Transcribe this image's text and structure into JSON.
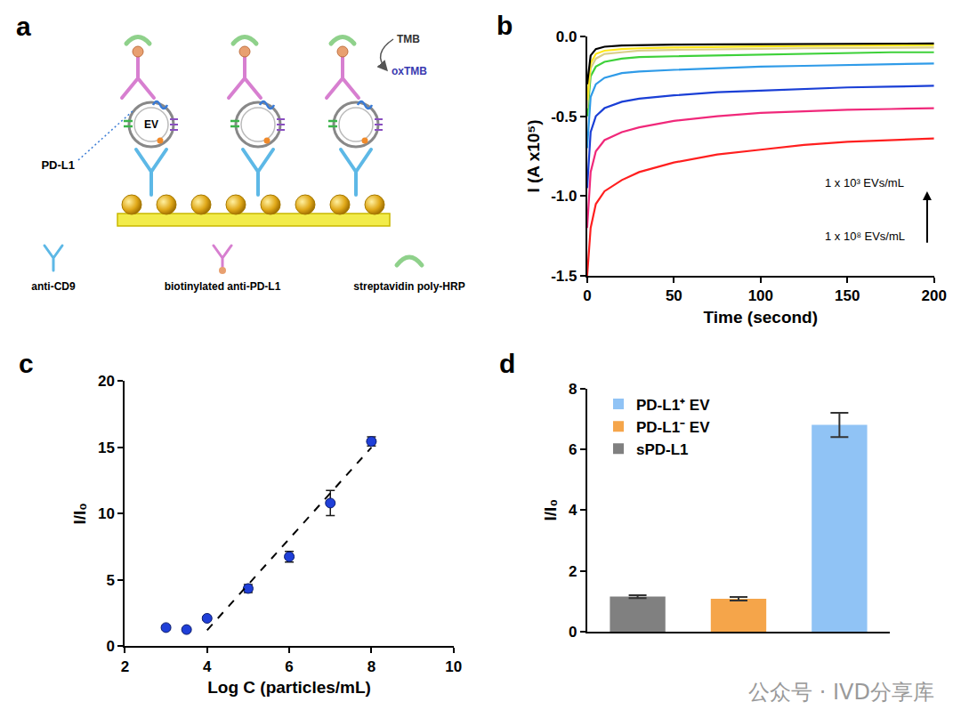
{
  "chart_data": [
    {
      "panel_label": "b",
      "type": "line",
      "x": [
        0,
        2,
        5,
        10,
        20,
        30,
        50,
        75,
        100,
        125,
        150,
        175,
        200
      ],
      "series": [
        {
          "color": "#ff1f1f",
          "values": [
            -1.5,
            -1.2,
            -1.05,
            -0.97,
            -0.9,
            -0.85,
            -0.79,
            -0.74,
            -0.71,
            -0.68,
            -0.66,
            -0.65,
            -0.64
          ]
        },
        {
          "color": "#f0287a",
          "values": [
            -1.2,
            -0.85,
            -0.72,
            -0.65,
            -0.6,
            -0.57,
            -0.53,
            -0.5,
            -0.48,
            -0.47,
            -0.46,
            -0.455,
            -0.45
          ]
        },
        {
          "color": "#1a3fd6",
          "values": [
            -0.95,
            -0.6,
            -0.5,
            -0.45,
            -0.41,
            -0.39,
            -0.37,
            -0.35,
            -0.34,
            -0.33,
            -0.32,
            -0.315,
            -0.31
          ]
        },
        {
          "color": "#2f9be8",
          "values": [
            -0.7,
            -0.38,
            -0.3,
            -0.26,
            -0.23,
            -0.22,
            -0.21,
            -0.2,
            -0.19,
            -0.185,
            -0.18,
            -0.175,
            -0.17
          ]
        },
        {
          "color": "#3ed13a",
          "values": [
            -0.5,
            -0.25,
            -0.19,
            -0.16,
            -0.14,
            -0.13,
            -0.125,
            -0.12,
            -0.115,
            -0.11,
            -0.105,
            -0.1,
            -0.1
          ]
        },
        {
          "color": "#d9cf8a",
          "values": [
            -0.45,
            -0.2,
            -0.14,
            -0.11,
            -0.1,
            -0.09,
            -0.085,
            -0.08,
            -0.078,
            -0.075,
            -0.073,
            -0.071,
            -0.07
          ]
        },
        {
          "color": "#ffe81a",
          "values": [
            -0.4,
            -0.17,
            -0.11,
            -0.09,
            -0.08,
            -0.075,
            -0.07,
            -0.065,
            -0.063,
            -0.06,
            -0.058,
            -0.056,
            -0.055
          ]
        },
        {
          "color": "#000000",
          "values": [
            -0.3,
            -0.12,
            -0.08,
            -0.065,
            -0.058,
            -0.055,
            -0.052,
            -0.05,
            -0.049,
            -0.048,
            -0.047,
            -0.046,
            -0.045
          ]
        }
      ],
      "xlabel": "Time (second)",
      "ylabel": "I (A x10⁵)",
      "xlim": [
        0,
        200
      ],
      "xticks": [
        0,
        50,
        100,
        150,
        200
      ],
      "ylim": [
        -1.5,
        0
      ],
      "yticks": [
        -1.5,
        {
          "value": -1,
          "label": "-1.0"
        },
        -0.5,
        {
          "value": 0,
          "label": "0.0"
        }
      ],
      "annotations": [
        "1 x 10³ EVs/mL",
        "1 x 10⁸ EVs/mL"
      ],
      "grid": false
    },
    {
      "panel_label": "c",
      "type": "scatter",
      "series": [
        {
          "type": "scatter",
          "marker": "circle",
          "color": "#1f3fd8",
          "x": [
            3,
            3.5,
            4,
            5,
            6,
            7,
            8
          ],
          "values": [
            1.4,
            1.25,
            2.1,
            4.35,
            6.75,
            10.8,
            15.45
          ],
          "errors": [
            0.15,
            0.1,
            0.15,
            0.3,
            0.4,
            0.95,
            0.35
          ]
        },
        {
          "type": "line",
          "line_style": "dash",
          "color": "#000000",
          "x": [
            4,
            8
          ],
          "values": [
            1.2,
            15.0
          ]
        }
      ],
      "xlabel": "Log C (particles/mL)",
      "ylabel": "I/I₀",
      "xlim": [
        2,
        10
      ],
      "xticks": [
        2,
        4,
        6,
        8,
        10
      ],
      "ylim": [
        0,
        20
      ],
      "yticks": [
        0,
        5,
        10,
        15,
        20
      ],
      "grid": false
    },
    {
      "panel_label": "d",
      "type": "bar",
      "categories": [
        "sPD-L1",
        "PD-L1⁻ EV",
        "PD-L1⁺ EV"
      ],
      "values": [
        1.15,
        1.08,
        6.8
      ],
      "errors": [
        0.05,
        0.06,
        0.4
      ],
      "colors": [
        "#808080",
        "#f5a54a",
        "#90c3f5"
      ],
      "ylabel": "I/I₀",
      "ylim": [
        0,
        8
      ],
      "yticks": [
        0,
        2,
        4,
        6,
        8
      ],
      "legend": "upper left",
      "tick_labels": "y",
      "grid": false
    }
  ],
  "diagram": {
    "panel_label": "a",
    "labels": {
      "pd_l1": "PD-L1",
      "ev": "EV",
      "tmb": "TMB",
      "oxtmb": "oxTMB"
    },
    "key_items": [
      "anti-CD9",
      "biotinylated anti-PD-L1",
      "streptavidin poly-HRP"
    ]
  },
  "watermark": "公众号 · IVD分享库"
}
